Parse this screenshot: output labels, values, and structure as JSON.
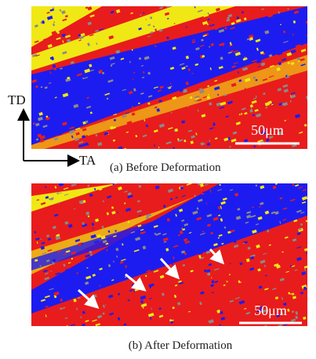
{
  "figure": {
    "directions": {
      "vertical": "TD",
      "horizontal": "TA"
    },
    "panels": [
      {
        "caption": "(a) Before Deformation",
        "scale_bar": "50μm"
      },
      {
        "caption": "(b) After Deformation",
        "scale_bar": "50μm"
      }
    ]
  }
}
